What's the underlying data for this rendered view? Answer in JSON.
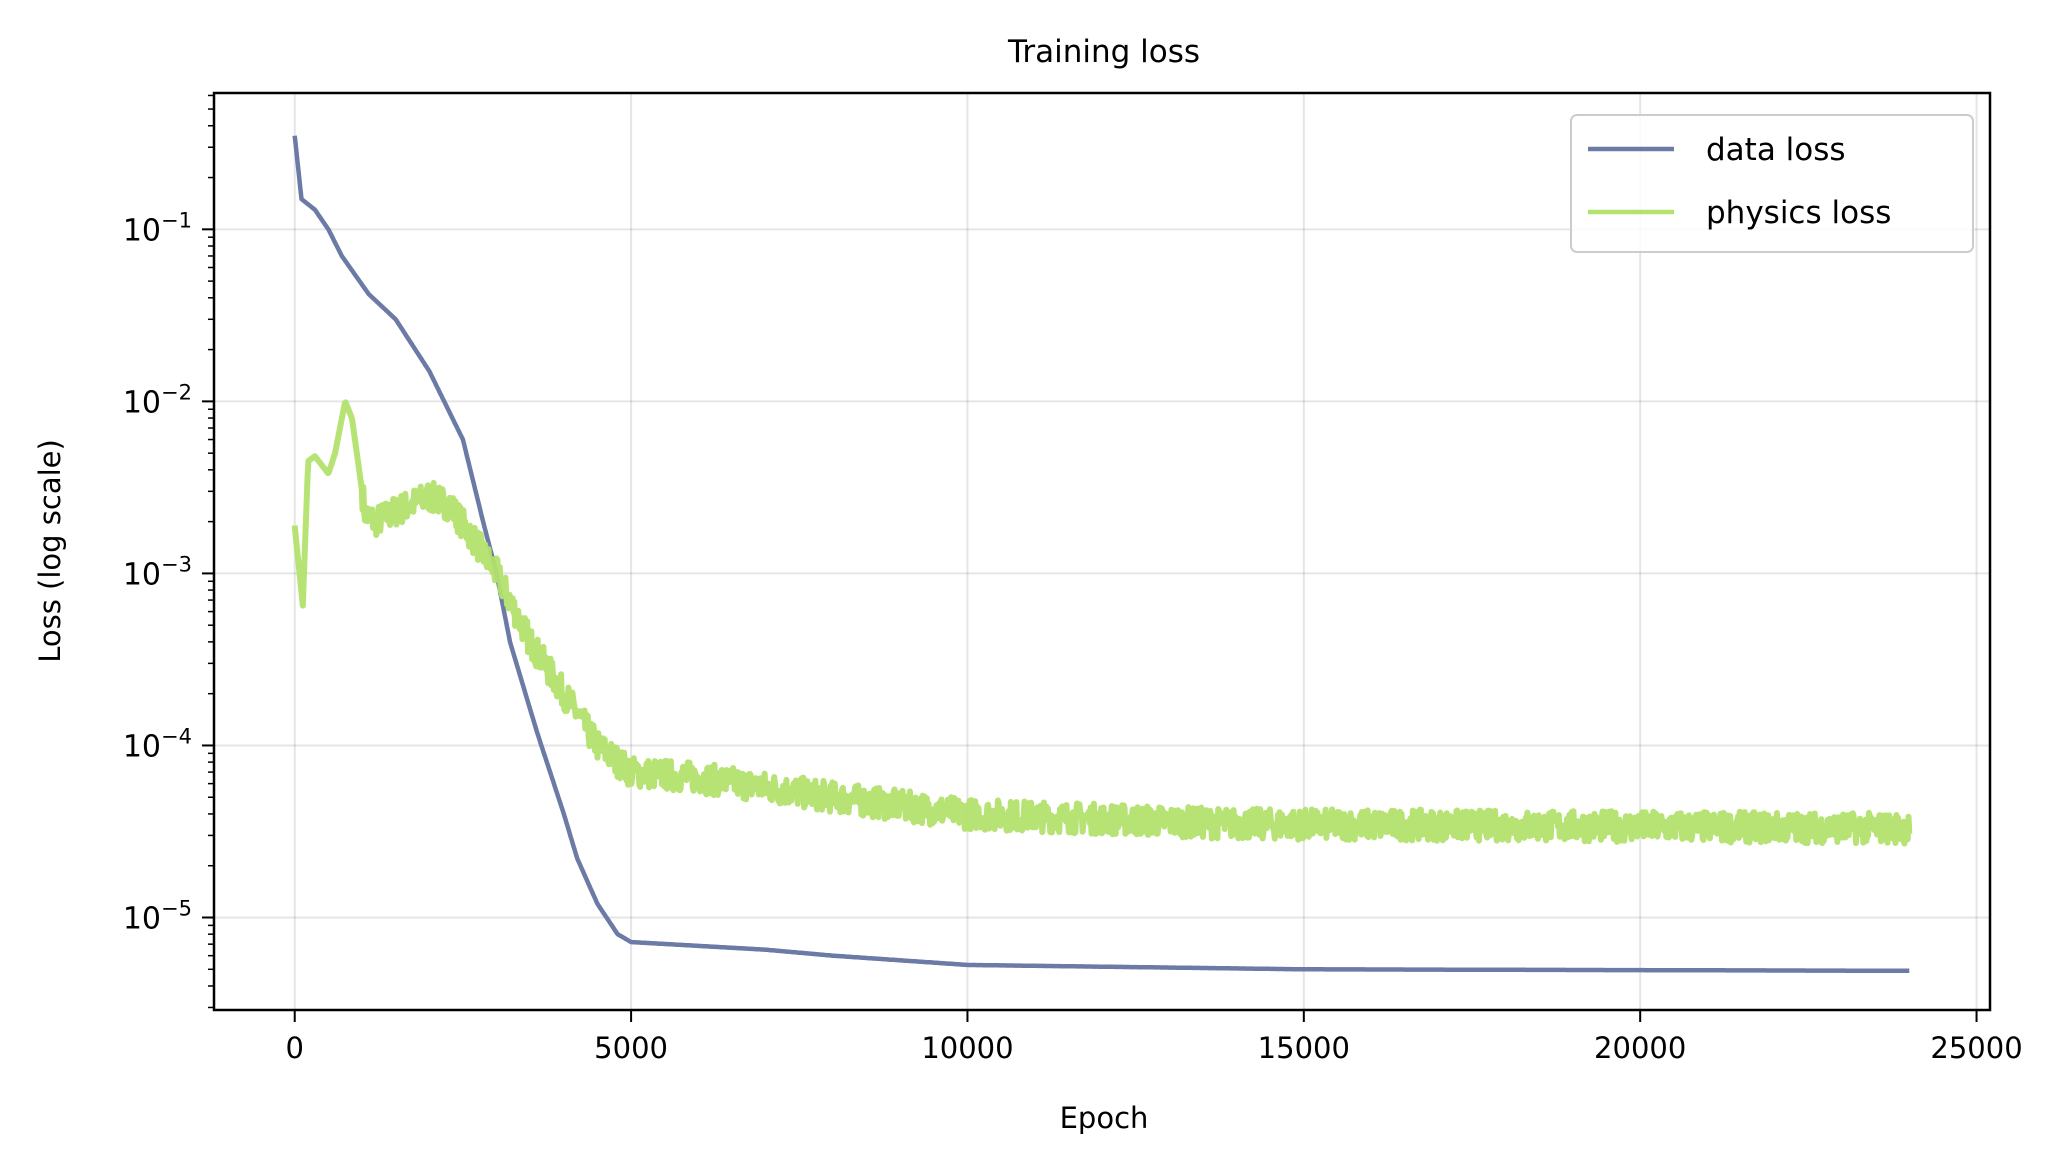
{
  "chart_data": {
    "type": "line",
    "title": "Training loss",
    "xlabel": "Epoch",
    "ylabel": "Loss (log scale)",
    "xlim": [
      -1200,
      25200
    ],
    "ylim": [
      2.9e-06,
      0.62
    ],
    "yscale": "log",
    "grid": true,
    "legend_position": "top-right",
    "xticks": [
      0,
      5000,
      10000,
      15000,
      20000,
      25000
    ],
    "xtick_labels": [
      "0",
      "5000",
      "10000",
      "15000",
      "20000",
      "25000"
    ],
    "yticks": [
      0.1,
      0.01,
      0.001,
      0.0001,
      1e-05
    ],
    "ytick_exponents": [
      "−1",
      "−2",
      "−3",
      "−4",
      "−5"
    ],
    "ytick_base": "10",
    "series": [
      {
        "name": "data loss",
        "color": "#6b7ba6",
        "noise": 0,
        "x": [
          0,
          100,
          300,
          500,
          700,
          1100,
          1500,
          2000,
          2500,
          2800,
          3000,
          3200,
          3600,
          4000,
          4200,
          4500,
          4800,
          5000,
          7000,
          8000,
          10000,
          15000,
          24000
        ],
        "y": [
          0.35,
          0.15,
          0.13,
          0.1,
          0.07,
          0.042,
          0.03,
          0.015,
          0.006,
          0.002,
          0.001,
          0.0004,
          0.00012,
          4e-05,
          2.2e-05,
          1.2e-05,
          8e-06,
          7.2e-06,
          6.5e-06,
          6e-06,
          5.3e-06,
          5e-06,
          4.9e-06
        ]
      },
      {
        "name": "physics loss",
        "color": "#b3e26e",
        "noise": 0.09,
        "x": [
          0,
          50,
          120,
          200,
          300,
          500,
          600,
          750,
          850,
          1050,
          1200,
          1500,
          2000,
          2300,
          2700,
          3000,
          3500,
          4000,
          4500,
          5000,
          6000,
          8000,
          10000,
          14000,
          24000
        ],
        "y": [
          0.0019,
          0.0012,
          0.00065,
          0.0045,
          0.0048,
          0.0038,
          0.005,
          0.01,
          0.008,
          0.0022,
          0.002,
          0.0023,
          0.0028,
          0.0025,
          0.0015,
          0.001,
          0.0004,
          0.0002,
          0.0001,
          7e-05,
          6.5e-05,
          5e-05,
          4e-05,
          3.5e-05,
          3.3e-05
        ]
      }
    ]
  }
}
